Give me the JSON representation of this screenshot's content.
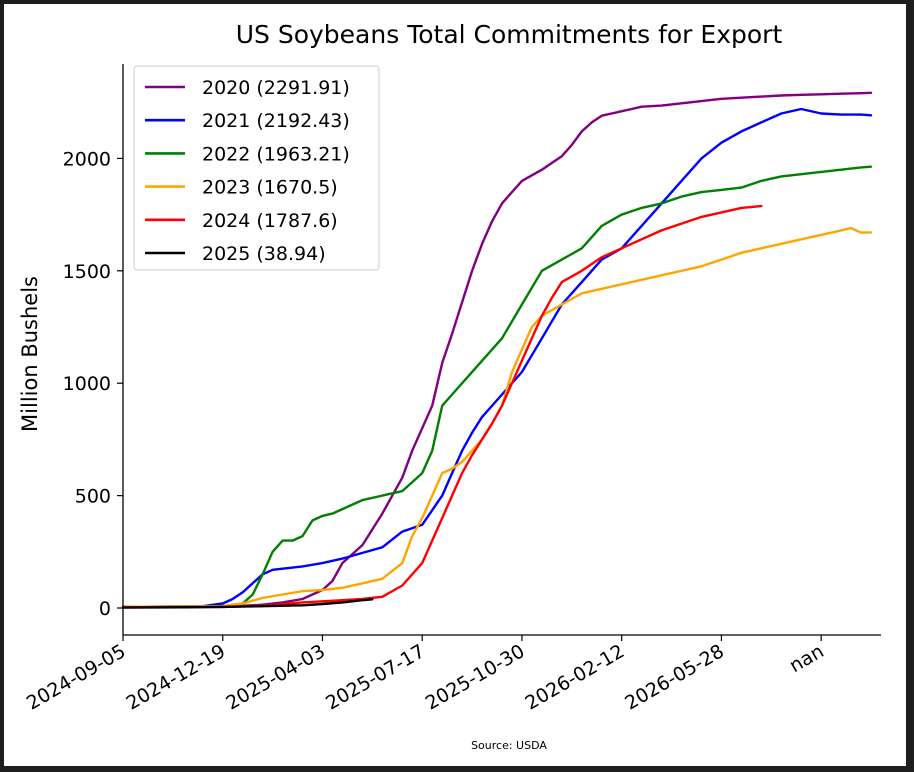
{
  "chart_data": {
    "type": "line",
    "title": "US Soybeans Total Commitments for Export",
    "xlabel": "",
    "ylabel": "Million Bushels",
    "source": "Source: USDA",
    "x_tick_labels": [
      "2024-09-05",
      "2024-12-19",
      "2025-04-03",
      "2025-07-17",
      "2025-10-30",
      "2026-02-12",
      "2026-05-28",
      "nan"
    ],
    "y_ticks": [
      0,
      500,
      1000,
      1500,
      2000
    ],
    "xlim": [
      0,
      76
    ],
    "ylim": [
      -120,
      2420
    ],
    "grid": false,
    "legend_position": "top-left",
    "series": [
      {
        "name": "2020 (2291.91)",
        "color": "#800080",
        "x": [
          0,
          8,
          10,
          12,
          14,
          16,
          18,
          20,
          21,
          22,
          24,
          26,
          28,
          29,
          30,
          31,
          32,
          33,
          34,
          35,
          36,
          37,
          38,
          40,
          42,
          43,
          44,
          45,
          46,
          47,
          48,
          49,
          50,
          51,
          52,
          54,
          56,
          58,
          60,
          62,
          64,
          66,
          68,
          70,
          72,
          74,
          75
        ],
        "y": [
          5,
          6,
          7,
          10,
          15,
          25,
          40,
          80,
          120,
          200,
          280,
          420,
          580,
          700,
          800,
          900,
          1090,
          1220,
          1360,
          1500,
          1620,
          1720,
          1800,
          1900,
          1950,
          1980,
          2010,
          2060,
          2120,
          2160,
          2190,
          2200,
          2210,
          2220,
          2230,
          2235,
          2245,
          2255,
          2265,
          2270,
          2275,
          2280,
          2283,
          2285,
          2288,
          2290,
          2292
        ]
      },
      {
        "name": "2021 (2192.43)",
        "color": "#0000ff",
        "x": [
          0,
          8,
          10,
          11,
          12,
          14,
          15,
          16,
          18,
          20,
          22,
          24,
          26,
          28,
          30,
          32,
          33,
          34,
          35,
          36,
          38,
          40,
          42,
          44,
          46,
          48,
          50,
          52,
          54,
          56,
          58,
          60,
          62,
          64,
          66,
          68,
          70,
          72,
          74,
          75
        ],
        "y": [
          5,
          8,
          20,
          40,
          70,
          150,
          170,
          175,
          185,
          200,
          220,
          245,
          270,
          340,
          370,
          500,
          600,
          700,
          780,
          850,
          950,
          1050,
          1200,
          1350,
          1450,
          1550,
          1600,
          1700,
          1800,
          1900,
          2000,
          2070,
          2120,
          2160,
          2200,
          2220,
          2200,
          2195,
          2195,
          2192
        ]
      },
      {
        "name": "2022 (1963.21)",
        "color": "#008000",
        "x": [
          0,
          10,
          12,
          13,
          14,
          15,
          16,
          17,
          18,
          19,
          20,
          21,
          22,
          24,
          26,
          28,
          30,
          31,
          32,
          33,
          34,
          36,
          38,
          40,
          42,
          44,
          46,
          48,
          50,
          52,
          54,
          56,
          58,
          60,
          62,
          64,
          66,
          68,
          70,
          72,
          74,
          75
        ],
        "y": [
          5,
          8,
          20,
          60,
          150,
          250,
          300,
          300,
          320,
          390,
          410,
          420,
          440,
          480,
          500,
          520,
          600,
          700,
          900,
          950,
          1000,
          1100,
          1200,
          1350,
          1500,
          1550,
          1600,
          1700,
          1750,
          1780,
          1800,
          1830,
          1850,
          1860,
          1870,
          1900,
          1920,
          1930,
          1940,
          1950,
          1960,
          1963
        ]
      },
      {
        "name": "2023 (1670.5)",
        "color": "#ffa500",
        "x": [
          0,
          10,
          12,
          14,
          16,
          18,
          20,
          22,
          24,
          26,
          28,
          29,
          30,
          31,
          32,
          33,
          34,
          35,
          36,
          37,
          38,
          39,
          40,
          41,
          42,
          44,
          46,
          48,
          50,
          52,
          54,
          56,
          58,
          60,
          62,
          64,
          66,
          68,
          70,
          72,
          73,
          74,
          75
        ],
        "y": [
          5,
          8,
          20,
          45,
          60,
          75,
          80,
          90,
          110,
          130,
          200,
          320,
          400,
          500,
          600,
          620,
          650,
          700,
          750,
          820,
          900,
          1050,
          1150,
          1250,
          1300,
          1350,
          1400,
          1420,
          1440,
          1460,
          1480,
          1500,
          1520,
          1550,
          1580,
          1600,
          1620,
          1640,
          1660,
          1680,
          1690,
          1670,
          1671
        ]
      },
      {
        "name": "2024 (1787.6)",
        "color": "#ff0000",
        "x": [
          0,
          10,
          14,
          18,
          20,
          22,
          24,
          26,
          28,
          30,
          31,
          32,
          33,
          34,
          35,
          36,
          37,
          38,
          39,
          40,
          41,
          42,
          43,
          44,
          46,
          48,
          50,
          52,
          54,
          56,
          58,
          60,
          62,
          64
        ],
        "y": [
          3,
          5,
          10,
          25,
          30,
          35,
          40,
          50,
          100,
          200,
          300,
          400,
          500,
          600,
          680,
          750,
          820,
          900,
          1000,
          1100,
          1200,
          1300,
          1380,
          1450,
          1500,
          1560,
          1600,
          1640,
          1680,
          1710,
          1740,
          1760,
          1780,
          1788
        ]
      },
      {
        "name": "2025 (38.94)",
        "color": "#000000",
        "x": [
          0,
          6,
          10,
          14,
          18,
          20,
          22,
          24,
          25
        ],
        "y": [
          2,
          3,
          5,
          8,
          12,
          18,
          25,
          35,
          39
        ]
      }
    ]
  }
}
